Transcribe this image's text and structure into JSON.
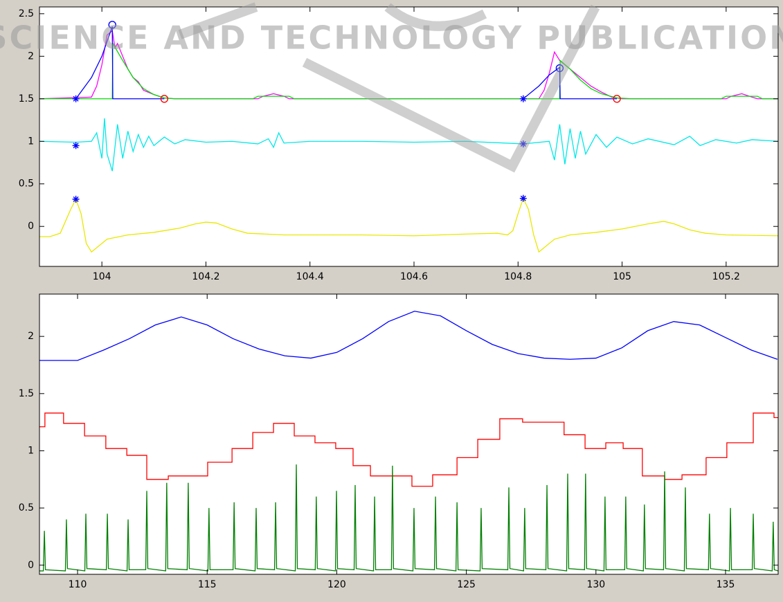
{
  "watermark": "SCIENCE AND TECHNOLOGY PUBLICATION",
  "chart_data": [
    {
      "type": "line",
      "xlim": [
        103.88,
        105.3
      ],
      "ylim": [
        -0.47,
        2.58
      ],
      "xticks": [
        104,
        104.2,
        104.4,
        104.6,
        104.8,
        105,
        105.2
      ],
      "yticks": [
        0,
        0.5,
        1,
        1.5,
        2,
        2.5
      ],
      "series": [
        {
          "color": "#e8e800",
          "x": [
            103.88,
            103.9,
            103.92,
            103.94,
            103.95,
            103.96,
            103.97,
            103.98,
            103.99,
            104.01,
            104.05,
            104.1,
            104.15,
            104.18,
            104.2,
            104.22,
            104.25,
            104.28,
            104.35,
            104.5,
            104.6,
            104.7,
            104.76,
            104.78,
            104.79,
            104.8,
            104.81,
            104.82,
            104.83,
            104.84,
            104.85,
            104.87,
            104.9,
            104.95,
            105.0,
            105.05,
            105.08,
            105.1,
            105.13,
            105.16,
            105.2,
            105.3
          ],
          "values": [
            -0.12,
            -0.12,
            -0.08,
            0.2,
            0.32,
            0.15,
            -0.2,
            -0.3,
            -0.25,
            -0.15,
            -0.1,
            -0.07,
            -0.02,
            0.03,
            0.05,
            0.04,
            -0.03,
            -0.08,
            -0.1,
            -0.1,
            -0.11,
            -0.09,
            -0.08,
            -0.1,
            -0.05,
            0.15,
            0.33,
            0.2,
            -0.1,
            -0.3,
            -0.25,
            -0.15,
            -0.1,
            -0.07,
            -0.03,
            0.03,
            0.06,
            0.03,
            -0.04,
            -0.08,
            -0.1,
            -0.11
          ]
        },
        {
          "color": "#00e8e8",
          "x": [
            103.88,
            103.95,
            103.98,
            103.99,
            104.0,
            104.005,
            104.01,
            104.02,
            104.03,
            104.04,
            104.05,
            104.06,
            104.07,
            104.08,
            104.09,
            104.1,
            104.12,
            104.14,
            104.16,
            104.2,
            104.25,
            104.3,
            104.32,
            104.33,
            104.34,
            104.35,
            104.4,
            104.5,
            104.6,
            104.7,
            104.81,
            104.86,
            104.87,
            104.88,
            104.89,
            104.9,
            104.91,
            104.92,
            104.93,
            104.95,
            104.97,
            104.99,
            105.02,
            105.05,
            105.1,
            105.13,
            105.15,
            105.18,
            105.22,
            105.25,
            105.3
          ],
          "values": [
            1.0,
            0.99,
            1.0,
            1.1,
            0.8,
            1.27,
            0.85,
            0.65,
            1.2,
            0.8,
            1.12,
            0.88,
            1.08,
            0.93,
            1.06,
            0.95,
            1.05,
            0.97,
            1.02,
            0.99,
            1.0,
            0.97,
            1.03,
            0.93,
            1.1,
            0.98,
            1.0,
            1.0,
            0.99,
            1.0,
            0.97,
            1.0,
            0.78,
            1.2,
            0.73,
            1.15,
            0.8,
            1.12,
            0.85,
            1.08,
            0.93,
            1.05,
            0.97,
            1.03,
            0.96,
            1.06,
            0.95,
            1.02,
            0.98,
            1.02,
            1.0
          ]
        },
        {
          "color": "#ff00ff",
          "x": [
            103.88,
            103.98,
            103.99,
            104.0,
            104.01,
            104.02,
            104.025,
            104.03,
            104.04,
            104.05,
            104.06,
            104.07,
            104.08,
            104.1,
            104.12,
            104.14,
            104.3,
            104.31,
            104.33,
            104.35,
            104.36,
            104.84,
            104.85,
            104.86,
            104.87,
            104.88,
            104.89,
            104.9,
            104.92,
            104.94,
            104.96,
            104.98,
            105.0,
            105.2,
            105.21,
            105.23,
            105.25,
            105.26,
            105.3
          ],
          "values": [
            1.5,
            1.52,
            1.65,
            1.9,
            2.25,
            2.3,
            2.1,
            2.15,
            2.0,
            1.85,
            1.75,
            1.7,
            1.6,
            1.55,
            1.51,
            1.5,
            1.5,
            1.53,
            1.56,
            1.53,
            1.5,
            1.5,
            1.6,
            1.8,
            2.05,
            1.95,
            1.9,
            1.85,
            1.75,
            1.65,
            1.58,
            1.52,
            1.5,
            1.5,
            1.53,
            1.56,
            1.52,
            1.5,
            1.5
          ]
        },
        {
          "color": "#00dd00",
          "x": [
            103.88,
            104.02,
            104.021,
            104.04,
            104.06,
            104.08,
            104.1,
            104.12,
            104.14,
            104.29,
            104.3,
            104.36,
            104.37,
            104.88,
            104.881,
            104.9,
            104.92,
            104.94,
            104.96,
            104.99,
            105.02,
            105.19,
            105.2,
            105.26,
            105.27,
            105.3
          ],
          "values": [
            1.5,
            1.5,
            2.15,
            1.95,
            1.75,
            1.62,
            1.55,
            1.51,
            1.5,
            1.5,
            1.53,
            1.53,
            1.5,
            1.5,
            1.95,
            1.85,
            1.72,
            1.62,
            1.56,
            1.51,
            1.5,
            1.5,
            1.53,
            1.53,
            1.5,
            1.5
          ]
        },
        {
          "color": "#0000ff",
          "x": [
            103.95,
            103.98,
            104.0,
            104.02,
            104.021,
            104.12,
            104.5,
            104.81,
            104.84,
            104.86,
            104.88,
            104.881,
            104.99
          ],
          "values": [
            1.5,
            1.75,
            2.0,
            2.35,
            1.5,
            1.5,
            null,
            1.5,
            1.65,
            1.78,
            1.87,
            1.5,
            1.5
          ]
        },
        {
          "color": "#0000ff",
          "line": false,
          "marker": "star",
          "x": [
            103.95,
            103.95,
            103.95,
            104.81,
            104.81,
            104.81
          ],
          "values": [
            1.5,
            0.95,
            0.32,
            1.5,
            0.97,
            0.33
          ]
        },
        {
          "color": "#0000ff",
          "line": false,
          "marker": "circle",
          "x": [
            104.02,
            104.88
          ],
          "values": [
            2.37,
            1.86
          ]
        },
        {
          "color": "#ff0000",
          "line": false,
          "marker": "circle",
          "x": [
            104.12,
            104.99
          ],
          "values": [
            1.5,
            1.5
          ]
        }
      ]
    },
    {
      "type": "line",
      "xlim": [
        108.53,
        137.03
      ],
      "ylim": [
        -0.08,
        2.37
      ],
      "xticks": [
        110,
        115,
        120,
        125,
        130,
        135
      ],
      "yticks": [
        0,
        0.5,
        1,
        1.5,
        2
      ],
      "series": [
        {
          "color": "#0000ff",
          "x": [
            108.53,
            110,
            111,
            112,
            113,
            114,
            115,
            116,
            117,
            118,
            119,
            120,
            121,
            122,
            123,
            124,
            125,
            126,
            127,
            128,
            129,
            130,
            131,
            132,
            133,
            134,
            135,
            136,
            137
          ],
          "values": [
            1.79,
            1.79,
            1.88,
            1.98,
            2.1,
            2.17,
            2.1,
            1.98,
            1.89,
            1.83,
            1.81,
            1.86,
            1.98,
            2.13,
            2.22,
            2.18,
            2.05,
            1.93,
            1.85,
            1.81,
            1.8,
            1.81,
            1.9,
            2.05,
            2.13,
            2.1,
            1.99,
            1.88,
            1.8
          ]
        },
        {
          "color": "#ff0000",
          "step": true,
          "x": [
            108.53,
            108.74,
            109.46,
            110.27,
            111.09,
            111.9,
            112.67,
            113.5,
            115.02,
            115.96,
            116.76,
            117.56,
            118.36,
            119.16,
            119.96,
            120.63,
            121.3,
            122.9,
            123.7,
            124.64,
            125.44,
            126.29,
            127.17,
            128.77,
            129.58,
            130.38,
            131.05,
            131.79,
            132.65,
            133.32,
            134.25,
            135.05,
            136.07,
            136.87
          ],
          "values": [
            1.21,
            1.33,
            1.24,
            1.13,
            1.02,
            0.96,
            0.75,
            0.78,
            0.9,
            1.02,
            1.16,
            1.24,
            1.13,
            1.07,
            1.02,
            0.87,
            0.78,
            0.69,
            0.79,
            0.94,
            1.1,
            1.28,
            1.25,
            1.14,
            1.02,
            1.07,
            1.02,
            0.78,
            0.75,
            0.79,
            0.94,
            1.07,
            1.33,
            1.29
          ]
        },
        {
          "color": "#007f00",
          "x": [
            108.53,
            108.68,
            108.72,
            108.76,
            109.53,
            109.57,
            109.61,
            110.28,
            110.32,
            110.36,
            111.11,
            111.15,
            111.19,
            111.91,
            111.95,
            111.99,
            112.63,
            112.67,
            112.71,
            113.4,
            113.44,
            113.48,
            114.23,
            114.27,
            114.31,
            115.03,
            115.07,
            115.11,
            116.0,
            116.04,
            116.08,
            116.85,
            116.89,
            116.93,
            117.6,
            117.64,
            117.68,
            118.4,
            118.44,
            118.48,
            119.17,
            119.21,
            119.25,
            119.95,
            119.99,
            120.03,
            120.67,
            120.71,
            120.75,
            121.42,
            121.46,
            121.5,
            122.11,
            122.15,
            122.19,
            122.94,
            122.98,
            123.02,
            123.77,
            123.81,
            123.85,
            124.6,
            124.64,
            124.68,
            125.53,
            125.57,
            125.61,
            126.6,
            126.64,
            126.68,
            127.21,
            127.25,
            127.29,
            128.07,
            128.11,
            128.15,
            128.87,
            128.91,
            128.95,
            129.56,
            129.6,
            129.64,
            130.31,
            130.35,
            130.39,
            131.11,
            131.15,
            131.19,
            131.83,
            131.87,
            131.91,
            132.61,
            132.65,
            132.69,
            133.41,
            133.45,
            133.49,
            134.34,
            134.38,
            134.42,
            135.15,
            135.19,
            135.23,
            136.03,
            136.07,
            136.11,
            136.8,
            136.84,
            136.88,
            137.03
          ],
          "values": [
            -0.05,
            -0.05,
            0.3,
            -0.04,
            -0.05,
            0.4,
            -0.03,
            -0.05,
            0.45,
            -0.03,
            -0.04,
            0.45,
            -0.03,
            -0.05,
            0.4,
            -0.04,
            -0.04,
            0.65,
            -0.03,
            -0.05,
            0.72,
            -0.03,
            -0.04,
            0.72,
            -0.03,
            -0.05,
            0.5,
            -0.04,
            -0.04,
            0.55,
            -0.03,
            -0.05,
            0.5,
            -0.03,
            -0.04,
            0.55,
            -0.03,
            -0.05,
            0.88,
            -0.03,
            -0.04,
            0.6,
            -0.03,
            -0.05,
            0.65,
            -0.03,
            -0.04,
            0.7,
            -0.03,
            -0.05,
            0.6,
            -0.04,
            -0.04,
            0.87,
            -0.03,
            -0.05,
            0.5,
            -0.03,
            -0.04,
            0.6,
            -0.03,
            -0.05,
            0.55,
            -0.04,
            -0.05,
            0.5,
            -0.03,
            -0.04,
            0.68,
            -0.03,
            -0.05,
            0.5,
            -0.03,
            -0.04,
            0.7,
            -0.03,
            -0.05,
            0.8,
            -0.03,
            -0.04,
            0.8,
            -0.03,
            -0.05,
            0.6,
            -0.04,
            -0.04,
            0.6,
            -0.03,
            -0.05,
            0.53,
            -0.03,
            -0.04,
            0.82,
            -0.03,
            -0.05,
            0.68,
            -0.03,
            -0.04,
            0.45,
            -0.03,
            -0.05,
            0.5,
            -0.04,
            -0.04,
            0.45,
            -0.03,
            -0.05,
            0.38,
            -0.04,
            -0.05
          ]
        }
      ]
    }
  ]
}
